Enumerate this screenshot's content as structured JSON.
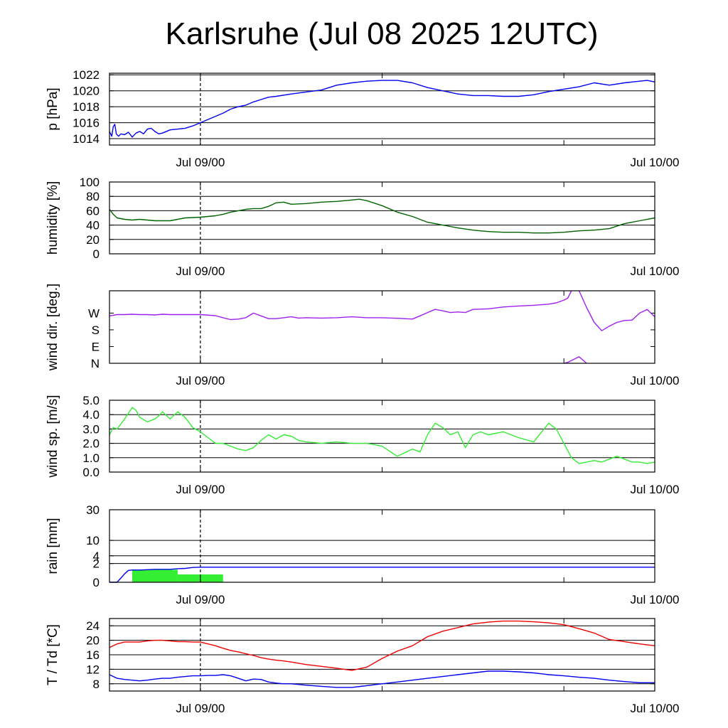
{
  "title": "Karlsruhe (Jul 08 2025 12UTC)",
  "colors": {
    "pressure": "#0000ee",
    "humidity": "#006400",
    "wind_dir": "#a020f0",
    "wind_speed": "#33ee33",
    "rain_bar": "#33ee33",
    "rain_sum": "#0000ee",
    "temperature": "#ee0000",
    "dewpoint": "#0000ee"
  },
  "chart_data": [
    {
      "type": "line",
      "ylabel": "p [hPa]",
      "x_ticks": [
        "Jul 09/00",
        "Jul 10/00"
      ],
      "ylim": [
        1013.2,
        1022.2
      ],
      "yticks": [
        1014,
        1016,
        1018,
        1020,
        1022
      ],
      "ytick_labels": [
        "1014",
        "1016",
        "1018",
        "1020",
        "1022"
      ],
      "hgrid": [
        1014,
        1016,
        1018,
        1020,
        1022
      ],
      "x_hours": [
        0,
        0.3,
        0.5,
        0.7,
        0.9,
        1.2,
        1.5,
        2,
        2.5,
        3,
        3.5,
        4,
        4.5,
        5,
        5.5,
        6,
        6.5,
        7,
        8,
        9,
        10,
        11,
        12,
        13,
        14,
        15,
        16,
        17,
        18,
        19,
        20,
        21,
        22,
        24,
        28,
        30,
        32,
        34,
        36,
        38,
        40,
        42,
        44,
        46,
        48,
        50,
        52,
        54,
        56,
        58,
        60,
        62,
        64,
        66,
        68,
        70,
        71,
        72
      ],
      "series": [
        {
          "values": [
            1014.9,
            1014.3,
            1015.5,
            1015.8,
            1014.6,
            1014.3,
            1014.6,
            1014.5,
            1014.8,
            1014.2,
            1014.7,
            1014.9,
            1014.6,
            1015.2,
            1015.3,
            1014.9,
            1014.6,
            1014.7,
            1015.1,
            1015.2,
            1015.3,
            1015.6,
            1016.0,
            1016.4,
            1016.8,
            1017.2,
            1017.7,
            1018.0,
            1018.2,
            1018.6,
            1018.9,
            1019.2,
            1019.3,
            1019.6,
            1020.1,
            1020.7,
            1021.0,
            1021.2,
            1021.3,
            1021.3,
            1021.0,
            1020.4,
            1020.0,
            1019.6,
            1019.4,
            1019.4,
            1019.3,
            1019.3,
            1019.5,
            1019.9,
            1020.2,
            1020.5,
            1021.0,
            1020.7,
            1021.0,
            1021.2,
            1021.3,
            1021.1
          ]
        }
      ]
    },
    {
      "type": "line",
      "ylabel": "humidity [%]",
      "x_ticks": [
        "Jul 09/00",
        "Jul 10/00"
      ],
      "ylim": [
        0,
        100
      ],
      "yticks": [
        0,
        20,
        40,
        60,
        80,
        100
      ],
      "ytick_labels": [
        "0",
        "20",
        "40",
        "60",
        "80",
        "100"
      ],
      "hgrid": [
        20,
        40,
        60,
        80
      ],
      "x_hours": [
        0,
        0.5,
        1,
        2,
        3,
        4,
        5,
        6,
        8,
        9,
        10,
        12,
        14,
        15,
        16,
        18,
        19,
        20,
        21,
        22,
        23,
        24,
        26,
        28,
        30,
        32,
        33,
        34,
        36,
        38,
        40,
        42,
        44,
        46,
        48,
        50,
        52,
        54,
        56,
        58,
        60,
        62,
        64,
        66,
        68,
        70,
        72
      ],
      "series": [
        {
          "values": [
            62,
            55,
            50,
            48,
            47,
            48,
            47,
            46,
            46,
            48,
            50,
            51,
            53,
            55,
            58,
            62,
            63,
            63,
            66,
            71,
            72,
            69,
            70,
            72,
            73,
            75,
            76,
            74,
            67,
            58,
            52,
            44,
            40,
            36,
            33,
            31,
            30,
            30,
            29,
            29,
            30,
            32,
            33,
            35,
            42,
            46,
            50
          ]
        }
      ]
    },
    {
      "type": "line",
      "ylabel": "wind dir. [deg.]",
      "x_ticks": [
        "Jul 09/00",
        "Jul 10/00"
      ],
      "ylim": [
        0,
        390
      ],
      "yticks": [
        0,
        90,
        180,
        270
      ],
      "ytick_labels": [
        "N",
        "E",
        "S",
        "W"
      ],
      "hgrid": [],
      "x_hours": [
        0,
        1,
        2,
        3,
        4,
        5,
        6,
        7,
        8,
        10,
        12,
        14,
        15,
        16,
        17,
        18,
        19,
        20,
        21,
        22,
        23,
        24,
        25,
        26,
        28,
        30,
        32,
        34,
        36,
        38,
        40,
        41,
        42,
        43,
        44,
        45,
        46,
        47,
        48,
        50,
        52,
        54,
        56,
        58,
        59,
        60,
        60.5,
        61,
        61.5,
        62,
        63,
        64,
        65,
        66,
        67,
        68,
        69,
        70,
        71,
        72
      ],
      "series": [
        {
          "values": [
            255,
            262,
            262,
            264,
            262,
            262,
            260,
            264,
            262,
            262,
            262,
            256,
            245,
            235,
            238,
            245,
            270,
            255,
            240,
            240,
            245,
            250,
            243,
            245,
            243,
            245,
            250,
            245,
            245,
            242,
            238,
            255,
            273,
            290,
            282,
            273,
            276,
            273,
            290,
            293,
            303,
            308,
            312,
            318,
            325,
            340,
            350,
            395,
            null,
            395,
            300,
            220,
            175,
            200,
            220,
            230,
            232,
            270,
            290,
            250
          ]
        },
        {
          "values": [
            null,
            null,
            null,
            null,
            null,
            null,
            null,
            null,
            null,
            null,
            null,
            null,
            null,
            null,
            null,
            null,
            null,
            null,
            null,
            null,
            null,
            null,
            null,
            null,
            null,
            null,
            null,
            null,
            null,
            null,
            null,
            null,
            null,
            null,
            null,
            null,
            null,
            null,
            null,
            null,
            null,
            null,
            null,
            null,
            null,
            null,
            null,
            null,
            null,
            null,
            null,
            null,
            null,
            null,
            null,
            null,
            null,
            null,
            null,
            null
          ]
        },
        {
          "values": [
            null,
            null,
            null,
            null,
            null,
            null,
            null,
            null,
            null,
            null,
            null,
            null,
            null,
            null,
            null,
            null,
            null,
            null,
            null,
            null,
            null,
            null,
            null,
            null,
            null,
            null,
            null,
            null,
            null,
            null,
            null,
            null,
            null,
            null,
            null,
            null,
            null,
            null,
            null,
            null,
            null,
            null,
            null,
            null,
            null,
            0,
            5,
            15,
            25,
            35,
            0,
            null,
            null,
            null,
            null,
            null,
            null,
            null,
            null,
            null
          ]
        }
      ]
    },
    {
      "type": "line",
      "ylabel": "wind sp. [m/s]",
      "x_ticks": [
        "Jul 09/00",
        "Jul 10/00"
      ],
      "ylim": [
        0,
        5.0
      ],
      "yticks": [
        0,
        1,
        2,
        3,
        4,
        5
      ],
      "ytick_labels": [
        "0.0",
        "1.0",
        "2.0",
        "3.0",
        "4.0",
        "5.0"
      ],
      "hgrid": [
        1,
        2,
        3,
        4
      ],
      "x_hours": [
        0,
        0.5,
        1,
        2,
        3,
        3.5,
        4,
        5,
        6,
        6.5,
        7,
        8,
        9,
        10,
        11,
        12,
        13,
        14,
        15,
        16,
        17,
        18,
        19,
        20,
        21,
        22,
        23,
        24,
        25,
        26,
        28,
        30,
        32,
        34,
        36,
        38,
        40,
        41,
        42,
        43,
        44,
        45,
        46,
        47,
        48,
        49,
        50,
        51,
        52,
        54,
        56,
        58,
        59,
        60,
        61,
        62,
        63,
        64,
        65,
        66,
        67,
        68,
        69,
        70,
        71,
        72
      ],
      "series": [
        {
          "values": [
            2.6,
            3.1,
            3.0,
            3.7,
            4.5,
            4.3,
            3.8,
            3.5,
            3.7,
            3.9,
            4.2,
            3.7,
            4.2,
            3.8,
            3.1,
            2.8,
            2.4,
            2.0,
            2.0,
            1.8,
            1.6,
            1.5,
            1.7,
            2.2,
            2.6,
            2.3,
            2.6,
            2.5,
            2.2,
            2.1,
            2.0,
            2.1,
            2.0,
            2.0,
            1.8,
            1.1,
            1.6,
            1.4,
            2.6,
            3.4,
            3.1,
            2.6,
            2.8,
            1.7,
            2.6,
            2.8,
            2.6,
            2.7,
            2.8,
            2.4,
            2.1,
            3.4,
            3.0,
            2.0,
            1.0,
            0.6,
            0.7,
            0.8,
            0.7,
            0.9,
            1.1,
            0.9,
            0.7,
            0.7,
            0.6,
            0.7
          ]
        }
      ]
    },
    {
      "type": "bar",
      "ylabel": "rain [mm]",
      "x_ticks": [
        "Jul 09/00",
        "Jul 10/00"
      ],
      "ylim": [
        0,
        30
      ],
      "scale": "sqrt",
      "yticks": [
        0,
        2,
        4,
        10,
        30
      ],
      "ytick_labels": [
        "0",
        "2",
        "4",
        "10",
        "30"
      ],
      "hgrid": [
        2,
        4,
        10,
        30
      ],
      "bars": [
        {
          "start_hour": 3,
          "end_hour": 9,
          "value": 0.9
        },
        {
          "start_hour": 9,
          "end_hour": 15,
          "value": 0.35
        }
      ],
      "x_hours": [
        0,
        1,
        1.5,
        2,
        2.5,
        3,
        4,
        6,
        8,
        9,
        10,
        11,
        12,
        72
      ],
      "series": [
        {
          "values": [
            0,
            0,
            0.1,
            0.4,
            0.8,
            0.85,
            0.85,
            0.95,
            0.95,
            1.05,
            1.1,
            1.25,
            1.3,
            1.3
          ]
        }
      ]
    },
    {
      "type": "line",
      "ylabel": "T / Td [*C]",
      "x_ticks": [
        "Jul 09/00",
        "Jul 10/00"
      ],
      "ylim": [
        6,
        26
      ],
      "yticks": [
        8,
        12,
        16,
        20,
        24
      ],
      "ytick_labels": [
        "8",
        "12",
        "16",
        "20",
        "24"
      ],
      "hgrid": [
        8,
        12,
        16,
        20,
        24
      ],
      "x_hours": [
        0,
        1,
        2,
        3,
        4,
        5,
        6,
        7,
        8,
        9,
        10,
        11,
        12,
        13,
        14,
        15,
        16,
        17,
        18,
        19,
        20,
        21,
        22,
        23,
        24,
        26,
        28,
        30,
        32,
        34,
        36,
        38,
        40,
        42,
        44,
        46,
        48,
        50,
        52,
        54,
        56,
        58,
        60,
        62,
        64,
        66,
        68,
        70,
        72
      ],
      "series": [
        {
          "values": [
            18,
            19,
            19.5,
            19.5,
            19.5,
            19.8,
            20,
            20,
            19.8,
            19.6,
            19.6,
            19.5,
            19.5,
            19.0,
            18.5,
            17.8,
            17.2,
            16.8,
            16.3,
            15.8,
            15.2,
            14.8,
            14.5,
            14.3,
            14.0,
            13.3,
            12.8,
            12.3,
            11.7,
            12.6,
            15.0,
            17.0,
            18.5,
            21.0,
            22.5,
            23.5,
            24.5,
            25.0,
            25.3,
            25.3,
            25.1,
            24.8,
            24.3,
            23.2,
            22.0,
            20.2,
            19.6,
            19.0,
            18.5
          ]
        },
        {
          "values": [
            10.5,
            9.5,
            9.2,
            9.0,
            8.8,
            9.0,
            9.3,
            9.5,
            9.5,
            9.8,
            10.0,
            10.2,
            10.2,
            10.3,
            10.3,
            10.5,
            10.2,
            9.5,
            8.8,
            9.3,
            9.2,
            8.5,
            8.2,
            8.0,
            8.0,
            7.6,
            7.3,
            7.0,
            7.0,
            7.5,
            8.0,
            8.5,
            9.0,
            9.5,
            10.0,
            10.5,
            11.0,
            11.5,
            11.5,
            11.3,
            11.0,
            10.5,
            10.2,
            9.8,
            9.5,
            9.0,
            8.6,
            8.3,
            8.3
          ]
        }
      ]
    }
  ]
}
